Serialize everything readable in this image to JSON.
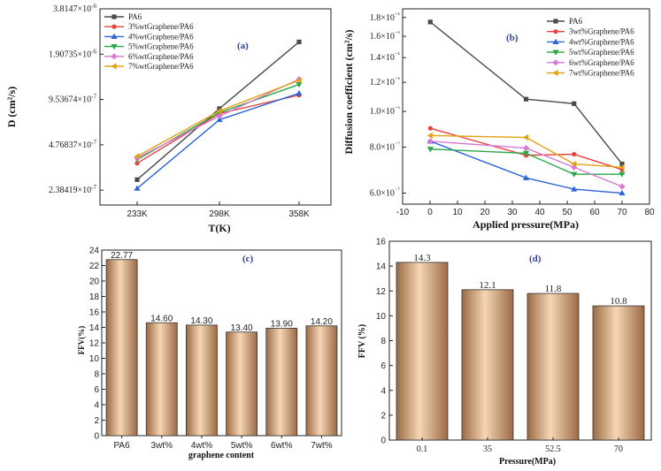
{
  "chart_data": [
    {
      "id": "a",
      "type": "line",
      "panel_label": "(a)",
      "xlabel": "T(K)",
      "ylabel": "D  (cm²/s)",
      "categories": [
        "233K",
        "298K",
        "358K"
      ],
      "yscale": "log",
      "ylim": [
        1.9e-07,
        3.8147e-06
      ],
      "ytick_values": [
        3.8147e-06,
        1.90735e-06,
        9.53674e-07,
        4.76837e-07,
        2.38419e-07
      ],
      "ytick_labels": [
        "3.8147E-6",
        "1.90735E-6",
        "9.53674E-7",
        "4.76837E-7",
        "2.38419E-7"
      ],
      "series": [
        {
          "name": "PA6",
          "color": "#4a4a4a",
          "marker": "square",
          "values": [
            2.8e-07,
            8.3e-07,
            2.3e-06
          ]
        },
        {
          "name": "3%wtGraphene/PA6",
          "color": "#e8403c",
          "marker": "circle",
          "values": [
            3.6e-07,
            7.7e-07,
            1.02e-06
          ]
        },
        {
          "name": "4%wtGraphene/PA6",
          "color": "#2a64d6",
          "marker": "triangle-up",
          "values": [
            2.45e-07,
            7e-07,
            1.05e-06
          ]
        },
        {
          "name": "5%wtGraphene/PA6",
          "color": "#2aa84a",
          "marker": "triangle-down",
          "values": [
            3.8e-07,
            7.8e-07,
            1.2e-06
          ]
        },
        {
          "name": "6%wtGraphene/PA6",
          "color": "#d77ad6",
          "marker": "diamond",
          "values": [
            3.9e-07,
            7.4e-07,
            1.3e-06
          ]
        },
        {
          "name": "7%wtGraphene/PA6",
          "color": "#e0a214",
          "marker": "triangle-left",
          "values": [
            4e-07,
            8e-07,
            1.28e-06
          ]
        }
      ]
    },
    {
      "id": "b",
      "type": "line",
      "panel_label": "(b)",
      "xlabel": "Applied pressure(MPa)",
      "ylabel": "Diffusion coefficient (cm²/s)",
      "xlim": [
        -10,
        80
      ],
      "xticks": [
        -10,
        0,
        10,
        20,
        30,
        40,
        50,
        60,
        70,
        80
      ],
      "yscale": "log",
      "ylim": [
        5.6e-07,
        1.9e-06
      ],
      "ytick_values": [
        1.8e-06,
        1.6e-06,
        1.4e-06,
        1.2e-06,
        1e-06,
        8e-07,
        6e-07
      ],
      "ytick_labels": [
        "1.8×10⁻⁶",
        "1.6×10⁻⁶",
        "1.4×10⁻⁶",
        "1.2×10⁻⁶",
        "1.0×10⁻⁶",
        "8.0×10⁻⁷",
        "6.0×10⁻⁷"
      ],
      "series": [
        {
          "name": "PA6",
          "color": "#4a4a4a",
          "marker": "square",
          "x": [
            0.1,
            35,
            52.5,
            70
          ],
          "values": [
            1.75e-06,
            1.08e-06,
            1.05e-06,
            7.2e-07
          ]
        },
        {
          "name": "3wt%Graphene/PA6",
          "color": "#e8403c",
          "marker": "circle",
          "x": [
            0.1,
            35,
            52.5,
            70
          ],
          "values": [
            9e-07,
            7.6e-07,
            7.65e-07,
            6.95e-07
          ]
        },
        {
          "name": "4wt%Graphene/PA6",
          "color": "#2a64d6",
          "marker": "triangle-up",
          "x": [
            0.1,
            35,
            52.5,
            70
          ],
          "values": [
            8.3e-07,
            6.6e-07,
            6.15e-07,
            6e-07
          ]
        },
        {
          "name": "5wt%Graphene/PA6",
          "color": "#2aa84a",
          "marker": "triangle-down",
          "x": [
            0.1,
            35,
            52.5,
            70
          ],
          "values": [
            7.9e-07,
            7.7e-07,
            6.75e-07,
            6.75e-07
          ]
        },
        {
          "name": "6wt%Graphene/PA6",
          "color": "#d77ad6",
          "marker": "diamond",
          "x": [
            0.1,
            35,
            52.5,
            70
          ],
          "values": [
            8.3e-07,
            7.95e-07,
            7.05e-07,
            6.25e-07
          ]
        },
        {
          "name": "7wt%Graphene/PA6",
          "color": "#e0a214",
          "marker": "triangle-left",
          "x": [
            0.1,
            35,
            52.5,
            70
          ],
          "values": [
            8.6e-07,
            8.5e-07,
            7.2e-07,
            7.05e-07
          ]
        }
      ]
    },
    {
      "id": "c",
      "type": "bar",
      "panel_label": "(c)",
      "xlabel": "graphene content",
      "ylabel": "FFV(%)",
      "categories": [
        "PA6",
        "3wt%",
        "4wt%",
        "5wt%",
        "6wt%",
        "7wt%"
      ],
      "values": [
        22.77,
        14.6,
        14.3,
        13.4,
        13.9,
        14.2
      ],
      "value_labels": [
        "22.77",
        "14.60",
        "14.30",
        "13.40",
        "13.90",
        "14.20"
      ],
      "ylim": [
        0,
        24
      ],
      "yticks": [
        0,
        2,
        4,
        6,
        8,
        10,
        12,
        14,
        16,
        18,
        20,
        22,
        24
      ]
    },
    {
      "id": "d",
      "type": "bar",
      "panel_label": "(d)",
      "xlabel": "Pressure(MPa)",
      "ylabel": "FFV (%)",
      "categories": [
        "0.1",
        "35",
        "52.5",
        "70"
      ],
      "values": [
        14.3,
        12.1,
        11.8,
        10.8
      ],
      "value_labels": [
        "14.3",
        "12.1",
        "11.8",
        "10.8"
      ],
      "ylim": [
        0,
        16
      ],
      "yticks": [
        0,
        2,
        4,
        6,
        8,
        10,
        12,
        14,
        16
      ]
    }
  ],
  "colors": {
    "bar_light": "#f6d6b4",
    "bar_dark": "#9b6a45",
    "panel_label": "#2c3fa0"
  }
}
